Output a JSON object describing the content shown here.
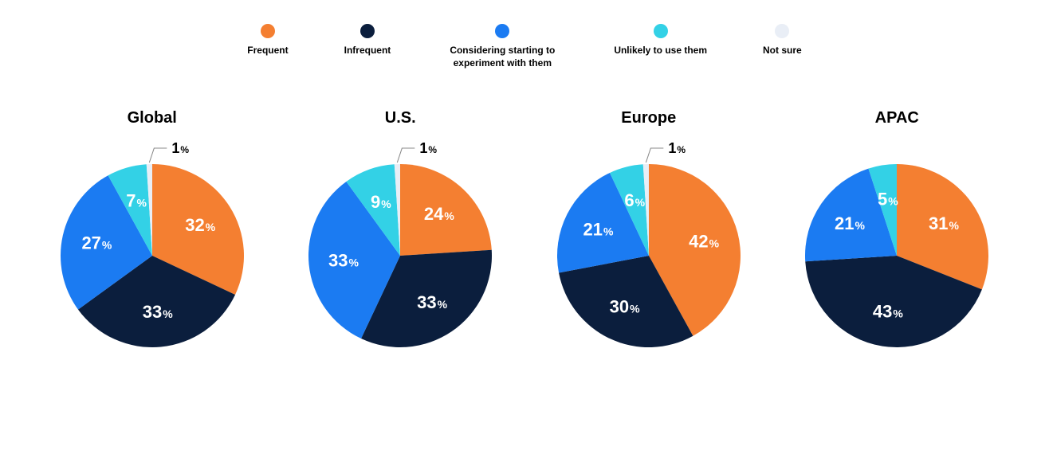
{
  "type": "pie-multiples",
  "background_color": "#ffffff",
  "title_fontsize": 20,
  "pie_radius": 115,
  "label_fontsize_big": 22,
  "label_fontsize_pct": 14,
  "legend": {
    "items": [
      {
        "label": "Frequent",
        "color": "#f47f31"
      },
      {
        "label": "Infrequent",
        "color": "#0b1e3d"
      },
      {
        "label": "Considering starting to experiment with them",
        "color": "#1b7bf2"
      },
      {
        "label": "Unlikely to use them",
        "color": "#33d1e6"
      },
      {
        "label": "Not sure",
        "color": "#e9eef6"
      }
    ]
  },
  "charts": [
    {
      "title": "Global",
      "slices": [
        {
          "name": "Frequent",
          "value": 32,
          "color": "#f47f31",
          "label_inside": true
        },
        {
          "name": "Infrequent",
          "value": 33,
          "color": "#0b1e3d",
          "label_inside": true
        },
        {
          "name": "Considering",
          "value": 27,
          "color": "#1b7bf2",
          "label_inside": true
        },
        {
          "name": "Unlikely",
          "value": 7,
          "color": "#33d1e6",
          "label_inside": true
        },
        {
          "name": "Not sure",
          "value": 1,
          "color": "#e9eef6",
          "label_inside": false
        }
      ]
    },
    {
      "title": "U.S.",
      "slices": [
        {
          "name": "Frequent",
          "value": 24,
          "color": "#f47f31",
          "label_inside": true
        },
        {
          "name": "Infrequent",
          "value": 33,
          "color": "#0b1e3d",
          "label_inside": true
        },
        {
          "name": "Considering",
          "value": 33,
          "color": "#1b7bf2",
          "label_inside": true
        },
        {
          "name": "Unlikely",
          "value": 9,
          "color": "#33d1e6",
          "label_inside": true
        },
        {
          "name": "Not sure",
          "value": 1,
          "color": "#e9eef6",
          "label_inside": false
        }
      ]
    },
    {
      "title": "Europe",
      "slices": [
        {
          "name": "Frequent",
          "value": 42,
          "color": "#f47f31",
          "label_inside": true
        },
        {
          "name": "Infrequent",
          "value": 30,
          "color": "#0b1e3d",
          "label_inside": true
        },
        {
          "name": "Considering",
          "value": 21,
          "color": "#1b7bf2",
          "label_inside": true
        },
        {
          "name": "Unlikely",
          "value": 6,
          "color": "#33d1e6",
          "label_inside": true
        },
        {
          "name": "Not sure",
          "value": 1,
          "color": "#e9eef6",
          "label_inside": false
        }
      ]
    },
    {
      "title": "APAC",
      "slices": [
        {
          "name": "Frequent",
          "value": 31,
          "color": "#f47f31",
          "label_inside": true
        },
        {
          "name": "Infrequent",
          "value": 43,
          "color": "#0b1e3d",
          "label_inside": true
        },
        {
          "name": "Considering",
          "value": 21,
          "color": "#1b7bf2",
          "label_inside": true
        },
        {
          "name": "Unlikely",
          "value": 5,
          "color": "#33d1e6",
          "label_inside": true
        },
        {
          "name": "Not sure",
          "value": 0,
          "color": "#e9eef6",
          "label_inside": false
        }
      ]
    }
  ]
}
